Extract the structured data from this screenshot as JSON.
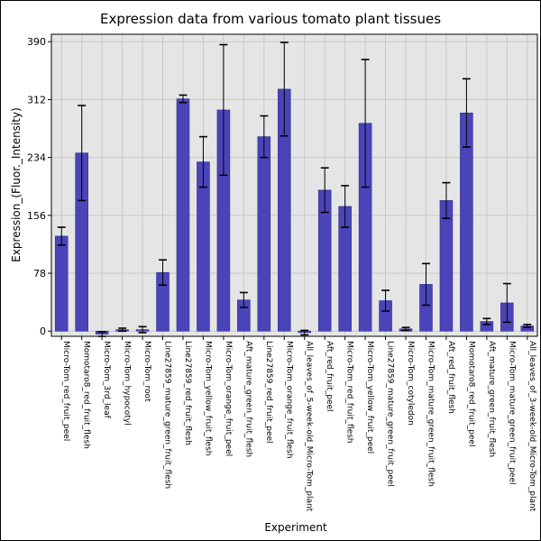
{
  "chart_data": {
    "type": "bar",
    "title": "Expression data from various tomato plant tissues",
    "xlabel": "Experiment",
    "ylabel": "Expression_(Fluor._Intensity)",
    "ylim": [
      -7,
      400
    ],
    "yticks": [
      0,
      78,
      156,
      234,
      312,
      390
    ],
    "grid": true,
    "bar_color": "#4b44b8",
    "bar_edge_color": "#2f2a8f",
    "plot_bg": "#e5e5e5",
    "grid_color": "#c8c8c8",
    "categories": [
      "Micro-Tom_red_fruit_peel",
      "Momotaro8_red_fruit_flesh",
      "Micro-Tom_3rd_leaf",
      "Micro-Tom_hypocotyl",
      "Micro-Tom_root",
      "Line27859_mature_green_fruit_flesh",
      "Line27859_red_fruit_flesh",
      "Micro-Tom_yellow_fruit_flesh",
      "Micro-Tom_orange_fruit_peel",
      "Aft_mature_green_fruit_flesh",
      "Line27859_red_fruit_peel",
      "Micro-Tom_orange_fruit_flesh",
      "All_leaves_of_5-week-old_Micro-Tom_plant",
      "Aft_red_fruit_peel",
      "Micro-Tom_red_fruit_flesh",
      "Micro-Tom_yellow_fruit_peel",
      "Line27859_mature_green_fruit_peel",
      "Micro-Tom_cotyledon",
      "Micro-Tom_mature_green_fruit_flesh",
      "Aft_red_fruit_flesh",
      "Momotaro8_red_fruit_peel",
      "Aft_mature_green_fruit_flesh",
      "Micro-Tom_mature_green_fruit_peel",
      "All_leaves_of_3-week-old_Micro-Tom_plant"
    ],
    "values": [
      128,
      240,
      -4,
      2,
      2,
      79,
      313,
      228,
      298,
      42,
      262,
      326,
      -2,
      190,
      168,
      280,
      41,
      3,
      63,
      176,
      294,
      13,
      38,
      7
    ],
    "error": [
      12,
      64,
      3,
      2,
      4,
      17,
      5,
      34,
      88,
      10,
      28,
      63,
      3,
      30,
      28,
      86,
      14,
      2,
      28,
      24,
      46,
      4,
      26,
      2
    ]
  }
}
